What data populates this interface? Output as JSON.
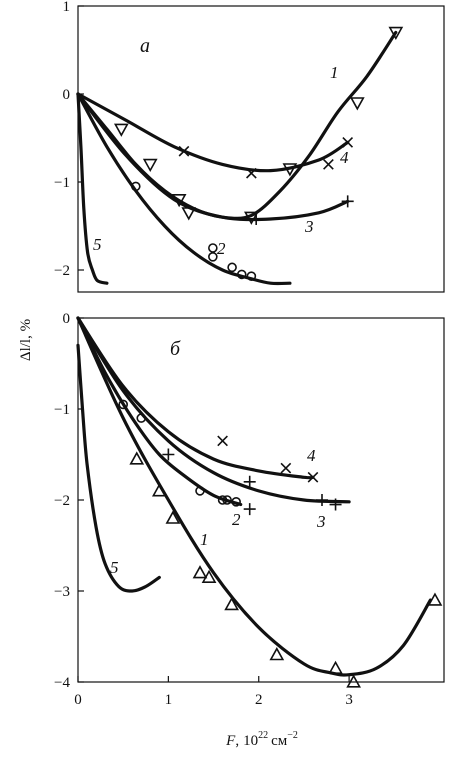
{
  "figure": {
    "y_axis_label": "Δl/l, %",
    "x_axis_label": "F, 10²² см⁻²",
    "x_axis_label_parts": {
      "var": "F",
      "comma": ",",
      "base": "10",
      "exp": "22",
      "unit": "см",
      "unit_exp": "−2"
    }
  },
  "chart_data": [
    {
      "type": "line",
      "panel_label": "а",
      "xlabel": "F, 10²² см⁻²",
      "ylabel": "Δl/l, %",
      "xlim": [
        0,
        3.8
      ],
      "ylim": [
        -2.25,
        1.0
      ],
      "yticks": [
        1,
        0,
        -1,
        -2
      ],
      "ytick_labels": [
        "1",
        "0",
        "−1",
        "−2"
      ],
      "grid": false,
      "series": [
        {
          "name": "1",
          "marker": "triangle-down",
          "x": [
            0,
            0.3,
            0.6,
            0.9,
            1.2,
            1.5,
            1.8,
            2.1,
            2.4,
            2.7,
            3.0,
            3.3
          ],
          "y": [
            0,
            -0.4,
            -0.8,
            -1.1,
            -1.3,
            -1.4,
            -1.38,
            -1.1,
            -0.7,
            -0.2,
            0.2,
            0.7
          ],
          "points": [
            [
              0.45,
              -0.4
            ],
            [
              0.75,
              -0.8
            ],
            [
              1.05,
              -1.2
            ],
            [
              1.15,
              -1.35
            ],
            [
              1.8,
              -1.4
            ],
            [
              2.2,
              -0.85
            ],
            [
              2.9,
              -0.1
            ],
            [
              3.3,
              0.7
            ]
          ]
        },
        {
          "name": "2",
          "marker": "circle",
          "x": [
            0,
            0.3,
            0.6,
            0.9,
            1.2,
            1.5,
            1.8,
            2.0,
            2.2
          ],
          "y": [
            0,
            -0.6,
            -1.1,
            -1.5,
            -1.8,
            -2.0,
            -2.1,
            -2.15,
            -2.15
          ],
          "points": [
            [
              0.6,
              -1.05
            ],
            [
              1.4,
              -1.75
            ],
            [
              1.4,
              -1.85
            ],
            [
              1.6,
              -1.97
            ],
            [
              1.7,
              -2.05
            ],
            [
              1.8,
              -2.07
            ]
          ]
        },
        {
          "name": "3",
          "marker": "plus",
          "x": [
            0,
            0.5,
            1.0,
            1.5,
            2.0,
            2.5,
            2.8
          ],
          "y": [
            0,
            -0.7,
            -1.2,
            -1.4,
            -1.42,
            -1.35,
            -1.22
          ],
          "points": [
            [
              1.85,
              -1.42
            ],
            [
              2.8,
              -1.22
            ]
          ]
        },
        {
          "name": "4",
          "marker": "cross",
          "x": [
            0,
            0.5,
            1.0,
            1.5,
            2.0,
            2.5,
            2.8
          ],
          "y": [
            0,
            -0.3,
            -0.6,
            -0.8,
            -0.87,
            -0.75,
            -0.55
          ],
          "points": [
            [
              1.1,
              -0.65
            ],
            [
              1.8,
              -0.9
            ],
            [
              2.6,
              -0.8
            ],
            [
              2.8,
              -0.55
            ]
          ]
        },
        {
          "name": "5",
          "marker": "none",
          "x": [
            0,
            0.03,
            0.06,
            0.1,
            0.15,
            0.2,
            0.3
          ],
          "y": [
            0,
            -0.6,
            -1.3,
            -1.8,
            -2.0,
            -2.12,
            -2.15
          ],
          "points": []
        }
      ]
    },
    {
      "type": "line",
      "panel_label": "б",
      "xlabel": "F, 10²² см⁻²",
      "ylabel": "Δl/l, %",
      "xlim": [
        0,
        4.05
      ],
      "ylim": [
        -4.0,
        0
      ],
      "xticks": [
        0,
        1,
        2,
        3
      ],
      "xtick_labels": [
        "0",
        "1",
        "2",
        "3"
      ],
      "yticks": [
        0,
        -1,
        -2,
        -3,
        -4
      ],
      "ytick_labels": [
        "0",
        "−1",
        "−2",
        "−3",
        "−4"
      ],
      "grid": false,
      "series": [
        {
          "name": "1",
          "marker": "triangle",
          "x": [
            0,
            0.5,
            1.0,
            1.5,
            2.0,
            2.5,
            2.8,
            3.0,
            3.3,
            3.6,
            3.9
          ],
          "y": [
            0,
            -1.1,
            -2.0,
            -2.8,
            -3.4,
            -3.8,
            -3.9,
            -3.92,
            -3.85,
            -3.6,
            -3.1
          ],
          "points": [
            [
              0.65,
              -1.55
            ],
            [
              0.9,
              -1.9
            ],
            [
              1.05,
              -2.2
            ],
            [
              1.35,
              -2.8
            ],
            [
              1.45,
              -2.85
            ],
            [
              1.7,
              -3.15
            ],
            [
              2.2,
              -3.7
            ],
            [
              2.85,
              -3.85
            ],
            [
              3.05,
              -4.0
            ],
            [
              3.95,
              -3.1
            ]
          ]
        },
        {
          "name": "2",
          "marker": "circle",
          "x": [
            0,
            0.3,
            0.6,
            0.9,
            1.2,
            1.5,
            1.8
          ],
          "y": [
            0,
            -0.6,
            -1.1,
            -1.5,
            -1.75,
            -1.95,
            -2.05
          ],
          "points": [
            [
              0.5,
              -0.95
            ],
            [
              0.7,
              -1.1
            ],
            [
              1.35,
              -1.9
            ],
            [
              1.6,
              -2.0
            ],
            [
              1.65,
              -2.0
            ],
            [
              1.75,
              -2.02
            ]
          ]
        },
        {
          "name": "3",
          "marker": "plus",
          "x": [
            0,
            0.5,
            1.0,
            1.5,
            2.0,
            2.5,
            3.0
          ],
          "y": [
            0,
            -0.8,
            -1.35,
            -1.7,
            -1.9,
            -2.0,
            -2.02
          ],
          "points": [
            [
              1.0,
              -1.5
            ],
            [
              1.9,
              -1.8
            ],
            [
              1.9,
              -2.1
            ],
            [
              2.7,
              -2.0
            ],
            [
              2.85,
              -2.05
            ]
          ]
        },
        {
          "name": "4",
          "marker": "cross",
          "x": [
            0,
            0.5,
            1.0,
            1.5,
            2.0,
            2.5,
            2.6
          ],
          "y": [
            0,
            -0.75,
            -1.25,
            -1.55,
            -1.68,
            -1.75,
            -1.75
          ],
          "points": [
            [
              1.6,
              -1.35
            ],
            [
              2.3,
              -1.65
            ],
            [
              2.6,
              -1.75
            ]
          ]
        },
        {
          "name": "5",
          "marker": "none",
          "x": [
            0,
            0.05,
            0.1,
            0.2,
            0.3,
            0.45,
            0.6,
            0.75,
            0.9
          ],
          "y": [
            -0.3,
            -1.0,
            -1.6,
            -2.3,
            -2.7,
            -2.95,
            -3.0,
            -2.95,
            -2.85
          ],
          "points": []
        }
      ]
    }
  ]
}
